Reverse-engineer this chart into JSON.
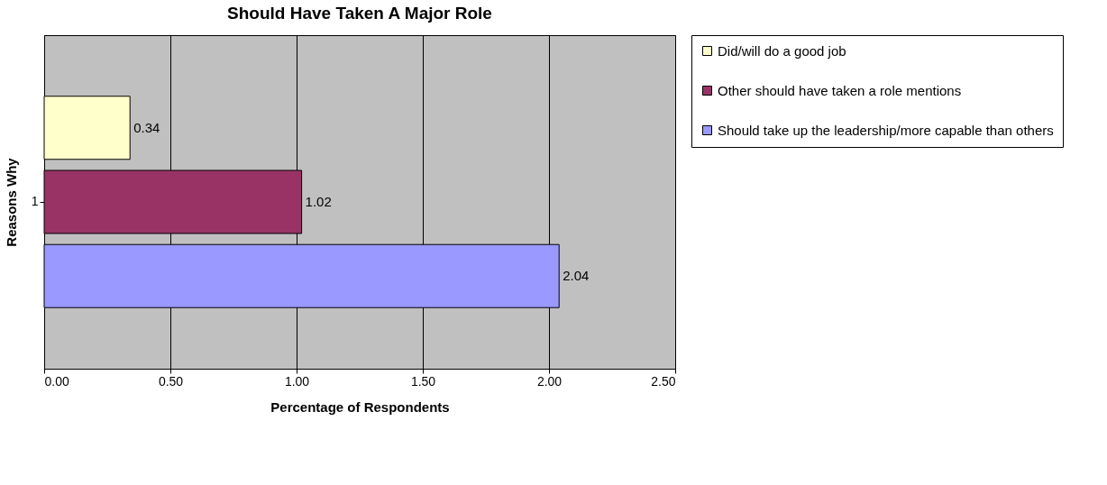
{
  "chart_data": {
    "type": "bar",
    "orientation": "horizontal",
    "title": "Should Have Taken A Major Role",
    "xlabel": "Percentage of Respondents",
    "ylabel": "Reasons Why",
    "categories": [
      "1"
    ],
    "series": [
      {
        "name": "Did/will do a good job",
        "color": "#ffffcc",
        "values": [
          0.34
        ]
      },
      {
        "name": "Other should have taken a role mentions",
        "color": "#993366",
        "values": [
          1.02
        ]
      },
      {
        "name": "Should take up the leadership/more capable than others",
        "color": "#9999ff",
        "values": [
          2.04
        ]
      }
    ],
    "xlim": [
      0,
      2.5
    ],
    "xticks": [
      {
        "value": 0,
        "label": "0.00"
      },
      {
        "value": 0.5,
        "label": "0.50"
      },
      {
        "value": 1,
        "label": "1.00"
      },
      {
        "value": 1.5,
        "label": "1.50"
      },
      {
        "value": 2,
        "label": "2.00"
      },
      {
        "value": 2.5,
        "label": "2.50"
      }
    ],
    "grid": "x",
    "legend": "right",
    "data_labels": true
  }
}
